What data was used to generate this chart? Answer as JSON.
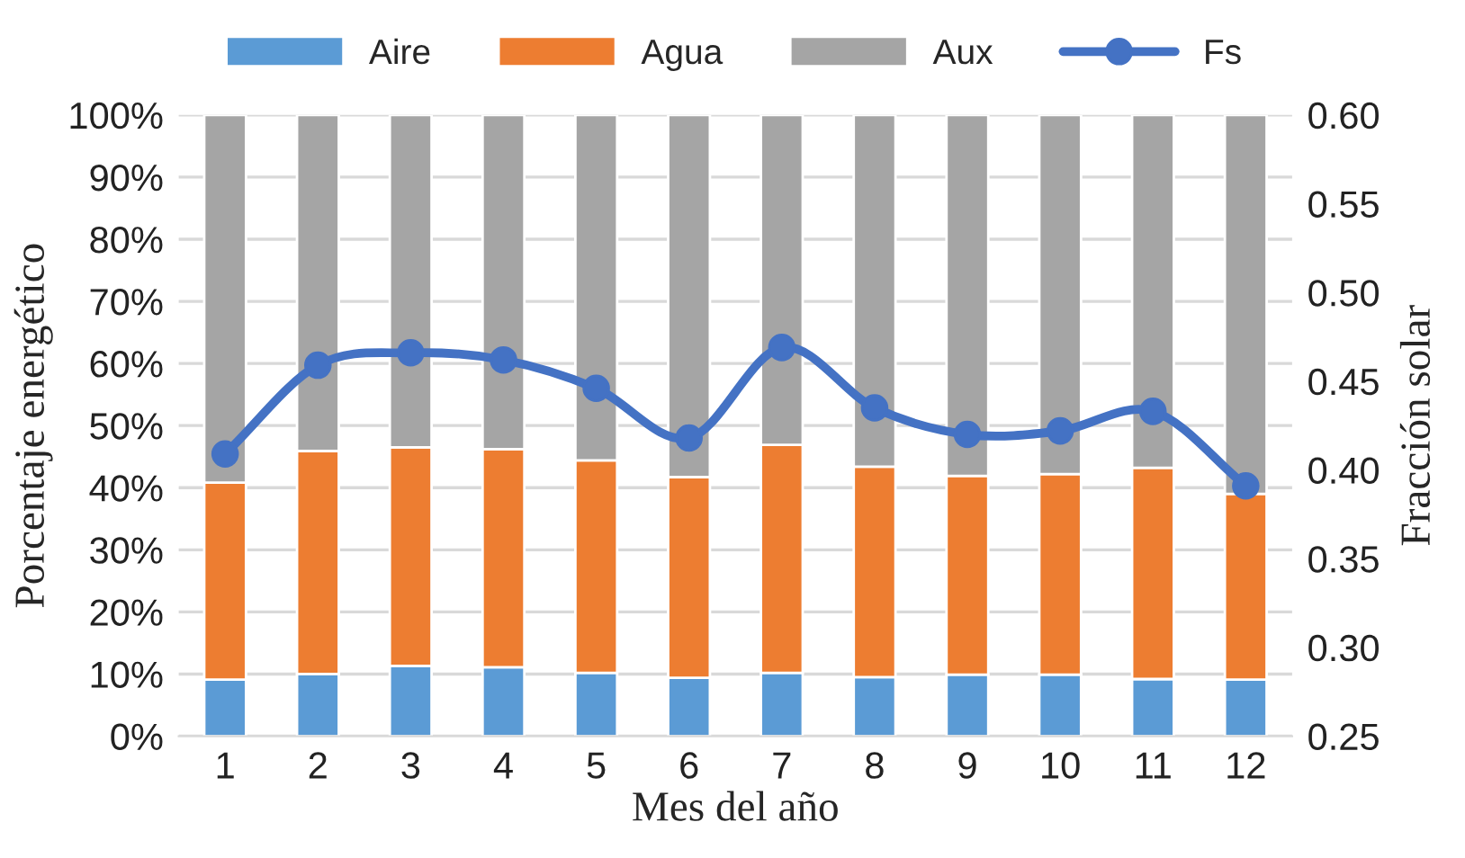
{
  "chart_data": {
    "type": "bar",
    "stacked": true,
    "xlabel": "Mes del año",
    "ylabel": "Porcentaje energético",
    "y2label": "Fracción solar",
    "categories": [
      "1",
      "2",
      "3",
      "4",
      "5",
      "6",
      "7",
      "8",
      "9",
      "10",
      "11",
      "12"
    ],
    "series": [
      {
        "name": "Aire",
        "color": "#5b9bd5",
        "values": [
          9.1,
          10.0,
          11.3,
          11.1,
          10.2,
          9.4,
          10.2,
          9.5,
          9.9,
          9.9,
          9.2,
          9.1
        ]
      },
      {
        "name": "Agua",
        "color": "#ed7d31",
        "values": [
          31.7,
          35.9,
          35.2,
          35.1,
          34.2,
          32.3,
          36.7,
          33.9,
          32.0,
          32.3,
          34.0,
          29.9
        ]
      },
      {
        "name": "Aux",
        "color": "#a5a5a5",
        "values": [
          59.2,
          54.1,
          53.5,
          53.8,
          55.6,
          58.3,
          53.1,
          56.6,
          58.1,
          57.8,
          56.8,
          61.0
        ]
      },
      {
        "name": "Fs",
        "color": "#4472c4",
        "type": "line",
        "axis": "y2",
        "marker": "circle",
        "values": [
          0.409,
          0.459,
          0.466,
          0.462,
          0.446,
          0.418,
          0.469,
          0.435,
          0.42,
          0.422,
          0.433,
          0.391
        ]
      }
    ],
    "ylim": [
      0,
      100
    ],
    "yticks": [
      {
        "value": 0,
        "label": "0%"
      },
      {
        "value": 10,
        "label": "10%"
      },
      {
        "value": 20,
        "label": "20%"
      },
      {
        "value": 30,
        "label": "30%"
      },
      {
        "value": 40,
        "label": "40%"
      },
      {
        "value": 50,
        "label": "50%"
      },
      {
        "value": 60,
        "label": "60%"
      },
      {
        "value": 70,
        "label": "70%"
      },
      {
        "value": 80,
        "label": "80%"
      },
      {
        "value": 90,
        "label": "90%"
      },
      {
        "value": 100,
        "label": "100%"
      }
    ],
    "y2lim": [
      0.25,
      0.6
    ],
    "y2ticks": [
      {
        "value": 0.25,
        "label": "0.25"
      },
      {
        "value": 0.3,
        "label": "0.30"
      },
      {
        "value": 0.35,
        "label": "0.35"
      },
      {
        "value": 0.4,
        "label": "0.40"
      },
      {
        "value": 0.45,
        "label": "0.45"
      },
      {
        "value": 0.5,
        "label": "0.50"
      },
      {
        "value": 0.55,
        "label": "0.55"
      },
      {
        "value": 0.6,
        "label": "0.60"
      }
    ],
    "grid": "y",
    "legend": "top"
  }
}
